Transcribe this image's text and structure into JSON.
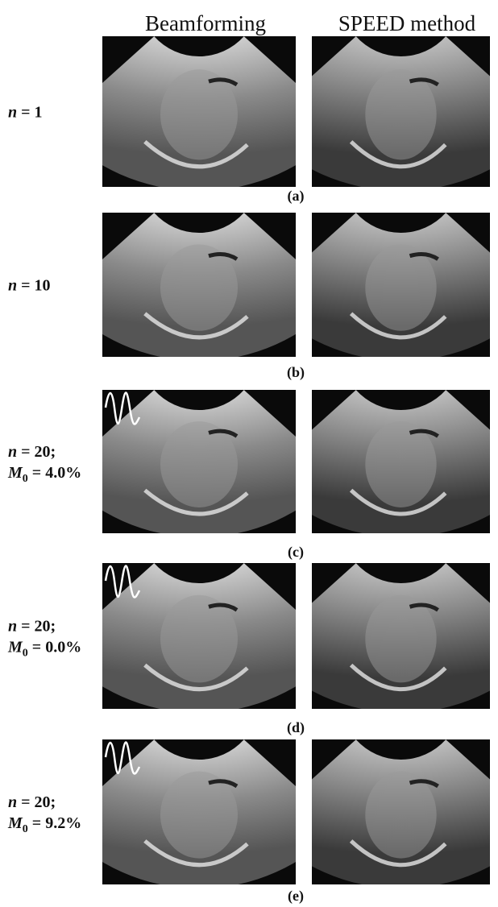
{
  "header": {
    "columns": [
      "Beamforming",
      "SPEED method"
    ]
  },
  "rows": [
    {
      "label": [
        {
          "var": "n",
          "rest": " = 1"
        }
      ],
      "caption": "(a)"
    },
    {
      "label": [
        {
          "var": "n",
          "rest": " = 10"
        }
      ],
      "caption": "(b)"
    },
    {
      "label": [
        {
          "var": "n",
          "rest": " = 20;"
        },
        {
          "var": "M",
          "sub": "0",
          "rest": " = 4.0%"
        }
      ],
      "caption": "(c)"
    },
    {
      "label": [
        {
          "var": "n",
          "rest": " = 20;"
        },
        {
          "var": "M",
          "sub": "0",
          "rest": " = 0.0%"
        }
      ],
      "caption": "(d)"
    },
    {
      "label": [
        {
          "var": "n",
          "rest": " = 20;"
        },
        {
          "var": "M",
          "sub": "0",
          "rest": " = 9.2%"
        }
      ],
      "caption": "(e)"
    }
  ]
}
